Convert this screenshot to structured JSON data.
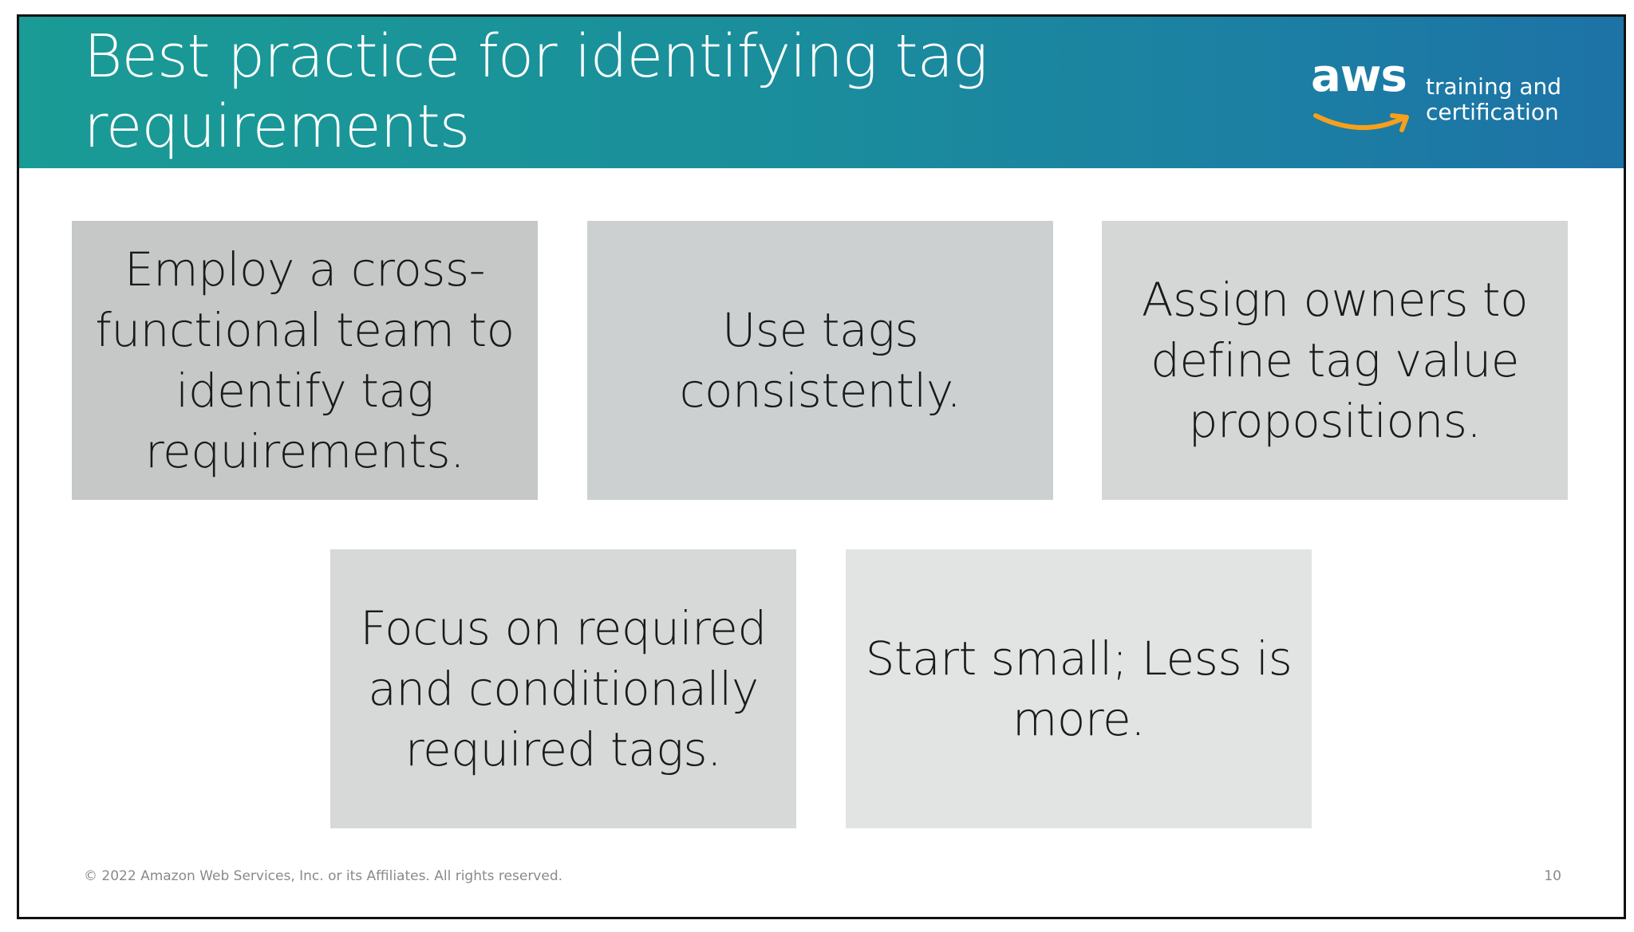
{
  "slide": {
    "title": "Best practice for identifying tag requirements",
    "logo": {
      "wordmark": "aws",
      "line1": "training and",
      "line2": "certification",
      "smile_color": "#f7a01b"
    },
    "header_colors": [
      "#1a9b95",
      "#1d72a6"
    ],
    "cards": [
      {
        "text": "Employ a cross-functional team to identify tag requirements."
      },
      {
        "text": "Use tags consistently."
      },
      {
        "text": "Assign owners to define tag value propositions."
      },
      {
        "text": "Focus on required and conditionally required tags."
      },
      {
        "text": "Start small; Less is more."
      }
    ],
    "footer": {
      "copyright": "© 2022 Amazon Web Services, Inc. or its Affiliates. All rights reserved.",
      "page_number": "10"
    }
  }
}
